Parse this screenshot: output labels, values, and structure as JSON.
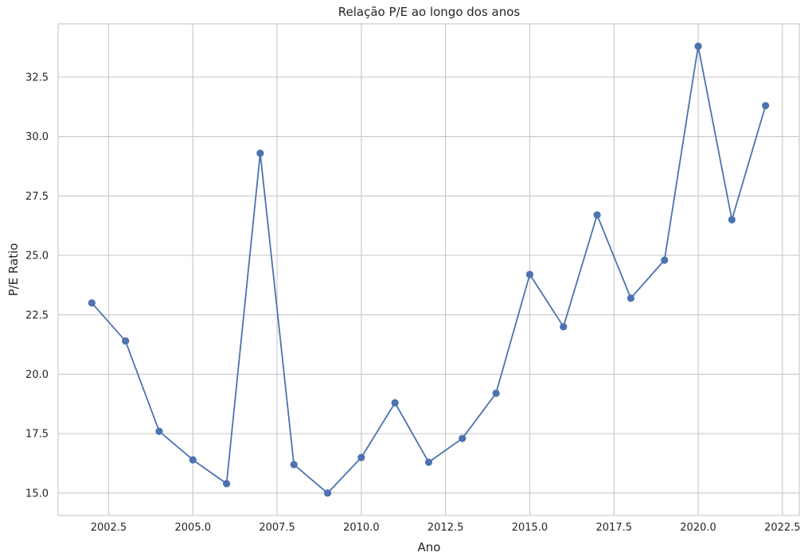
{
  "chart_data": {
    "type": "line",
    "title": "Relação P/E ao longo dos anos",
    "xlabel": "Ano",
    "ylabel": "P/E Ratio",
    "x": [
      2002,
      2003,
      2004,
      2005,
      2006,
      2007,
      2008,
      2009,
      2010,
      2011,
      2012,
      2013,
      2014,
      2015,
      2016,
      2017,
      2018,
      2019,
      2020,
      2021,
      2022
    ],
    "series": [
      {
        "values": [
          23.0,
          21.4,
          17.6,
          16.4,
          15.4,
          29.3,
          16.2,
          15.0,
          16.5,
          18.8,
          16.3,
          17.3,
          19.2,
          24.2,
          22.0,
          26.7,
          23.2,
          24.8,
          33.8,
          26.5,
          31.3
        ],
        "color": "#4c72b0",
        "marker": "circle"
      }
    ],
    "xlim": [
      2001.0,
      2023.0
    ],
    "ylim": [
      14.06,
      34.74
    ],
    "xticks": [
      2002.5,
      2005.0,
      2007.5,
      2010.0,
      2012.5,
      2015.0,
      2017.5,
      2020.0,
      2022.5
    ],
    "xtick_labels": [
      "2002.5",
      "2005.0",
      "2007.5",
      "2010.0",
      "2012.5",
      "2015.0",
      "2017.5",
      "2020.0",
      "2022.5"
    ],
    "yticks": [
      15.0,
      17.5,
      20.0,
      22.5,
      25.0,
      27.5,
      30.0,
      32.5
    ],
    "ytick_labels": [
      "15.0",
      "17.5",
      "20.0",
      "22.5",
      "25.0",
      "27.5",
      "30.0",
      "32.5"
    ],
    "grid": true,
    "grid_color": "#cccccc",
    "spine_color": "#cccccc",
    "background": "#ffffff"
  }
}
